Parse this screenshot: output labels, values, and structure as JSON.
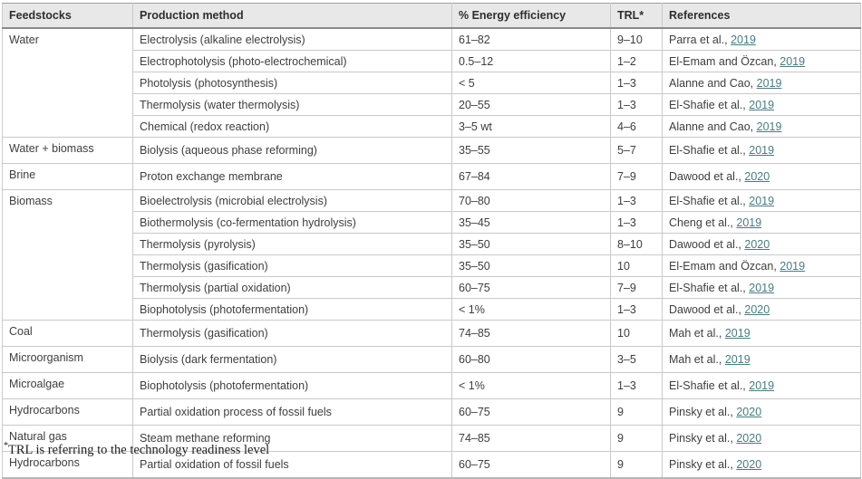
{
  "table": {
    "headers": [
      "Feedstocks",
      "Production method",
      "% Energy efficiency",
      "TRL*",
      "References"
    ],
    "groups": [
      {
        "feedstock": "Water",
        "rows": [
          {
            "method": "Electrolysis (alkaline electrolysis)",
            "efficiency": "61–82",
            "trl": "9–10",
            "ref_text": "Parra et al.,",
            "ref_year": "2019"
          },
          {
            "method": "Electrophotolysis (photo-electrochemical)",
            "efficiency": "0.5–12",
            "trl": "1–2",
            "ref_text": "El-Emam and Özcan,",
            "ref_year": "2019"
          },
          {
            "method": "Photolysis (photosynthesis)",
            "efficiency": "< 5",
            "trl": "1–3",
            "ref_text": "Alanne and Cao,",
            "ref_year": "2019"
          },
          {
            "method": "Thermolysis (water thermolysis)",
            "efficiency": "20–55",
            "trl": "1–3",
            "ref_text": "El-Shafie et al.,",
            "ref_year": "2019"
          },
          {
            "method": "Chemical (redox reaction)",
            "efficiency": "3–5 wt",
            "trl": "4–6",
            "ref_text": "Alanne and Cao,",
            "ref_year": "2019"
          }
        ]
      },
      {
        "feedstock": "Water + biomass",
        "rows": [
          {
            "method": "Biolysis (aqueous phase reforming)",
            "efficiency": "35–55",
            "trl": "5–7",
            "ref_text": "El-Shafie et al.,",
            "ref_year": "2019"
          }
        ]
      },
      {
        "feedstock": "Brine",
        "rows": [
          {
            "method": "Proton exchange membrane",
            "efficiency": "67–84",
            "trl": "7–9",
            "ref_text": "Dawood et al.,",
            "ref_year": "2020"
          }
        ]
      },
      {
        "feedstock": "Biomass",
        "rows": [
          {
            "method": "Bioelectrolysis (microbial electrolysis)",
            "efficiency": "70–80",
            "trl": "1–3",
            "ref_text": "El-Shafie et al.,",
            "ref_year": "2019"
          },
          {
            "method": "Biothermolysis (co-fermentation hydrolysis)",
            "efficiency": "35–45",
            "trl": "1–3",
            "ref_text": "Cheng et al.,",
            "ref_year": "2019"
          },
          {
            "method": "Thermolysis (pyrolysis)",
            "efficiency": "35–50",
            "trl": "8–10",
            "ref_text": "Dawood et al.,",
            "ref_year": "2020"
          },
          {
            "method": "Thermolysis (gasification)",
            "efficiency": "35–50",
            "trl": "10",
            "ref_text": "El-Emam and Özcan,",
            "ref_year": "2019"
          },
          {
            "method": "Thermolysis (partial oxidation)",
            "efficiency": "60–75",
            "trl": "7–9",
            "ref_text": "El-Shafie et al.,",
            "ref_year": "2019"
          },
          {
            "method": "Biophotolysis (photofermentation)",
            "efficiency": "< 1%",
            "trl": "1–3",
            "ref_text": "Dawood et al.,",
            "ref_year": "2020"
          }
        ]
      },
      {
        "feedstock": "Coal",
        "rows": [
          {
            "method": "Thermolysis (gasification)",
            "efficiency": "74–85",
            "trl": "10",
            "ref_text": "Mah et al.,",
            "ref_year": "2019"
          }
        ]
      },
      {
        "feedstock": "Microorganism",
        "rows": [
          {
            "method": "Biolysis (dark fermentation)",
            "efficiency": "60–80",
            "trl": "3–5",
            "ref_text": "Mah et al.,",
            "ref_year": "2019"
          }
        ]
      },
      {
        "feedstock": "Microalgae",
        "rows": [
          {
            "method": "Biophotolysis (photofermentation)",
            "efficiency": "< 1%",
            "trl": "1–3",
            "ref_text": "El-Shafie et al.,",
            "ref_year": "2019"
          }
        ]
      },
      {
        "feedstock": "Hydrocarbons",
        "rows": [
          {
            "method": "Partial oxidation process of fossil fuels",
            "efficiency": "60–75",
            "trl": "9",
            "ref_text": "Pinsky et al.,",
            "ref_year": "2020"
          }
        ]
      },
      {
        "feedstock": "Natural gas",
        "rows": [
          {
            "method": "Steam methane reforming",
            "efficiency": "74–85",
            "trl": "9",
            "ref_text": "Pinsky et al.,",
            "ref_year": "2020"
          }
        ]
      },
      {
        "feedstock": "Hydrocarbons",
        "rows": [
          {
            "method": "Partial oxidation of fossil fuels",
            "efficiency": "60–75",
            "trl": "9",
            "ref_text": "Pinsky et al.,",
            "ref_year": "2020"
          }
        ]
      }
    ],
    "footnote": {
      "marker": "*",
      "text": "TRL is referring to the technology readiness level"
    }
  },
  "colors": {
    "header_bg": "#e8e8e8",
    "header_text": "#2e2e2e",
    "body_text": "#3e3e3e",
    "row_border": "#c9c9c9",
    "header_rule": "#8a8a8a",
    "link": "#4a7b80"
  }
}
